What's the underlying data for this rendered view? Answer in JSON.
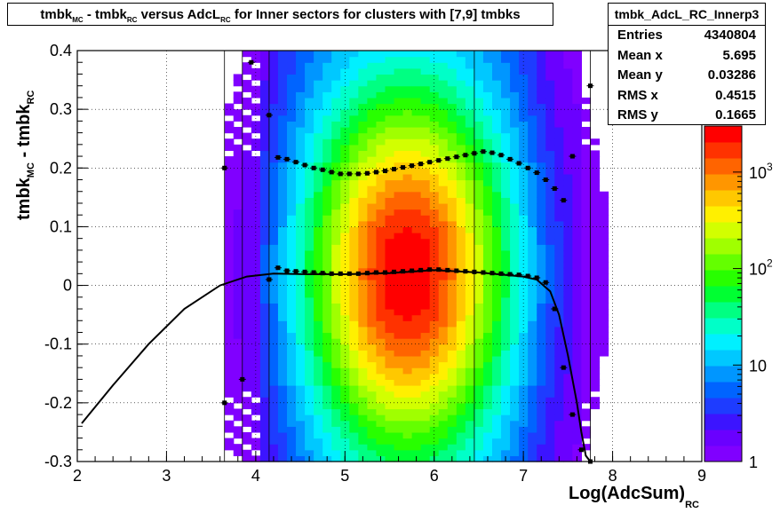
{
  "title": {
    "parts": [
      "tmbk",
      "MC",
      " - tmbk",
      "RC",
      " versus AdcL",
      "RC",
      " for Inner sectors for clusters with [7,9] tmbks"
    ]
  },
  "stats": {
    "name": "tmbk_AdcL_RC_Innerp3",
    "rows": [
      {
        "label": "Entries",
        "value": "4340804"
      },
      {
        "label": "Mean x",
        "value": "5.695"
      },
      {
        "label": "Mean y",
        "value": "0.03286"
      },
      {
        "label": "RMS x",
        "value": "0.4515"
      },
      {
        "label": "RMS y",
        "value": "0.1665"
      }
    ]
  },
  "xlabel": {
    "main": "Log(AdcSum)",
    "sub": "RC"
  },
  "ylabel": {
    "main": "tmbk",
    "sub1": "MC",
    "mid": " - tmbk",
    "sub2": "RC"
  },
  "chart_data": {
    "type": "heatmap",
    "title": "tmbk_MC - tmbk_RC versus AdcL_RC for Inner sectors for clusters with [7,9] tmbks",
    "xlabel": "Log(AdcSum)_RC",
    "ylabel": "tmbk_MC - tmbk_RC",
    "xlim": [
      2,
      9
    ],
    "ylim": [
      -0.3,
      0.4
    ],
    "x_ticks": [
      2,
      3,
      4,
      5,
      6,
      7,
      8,
      9
    ],
    "y_ticks": [
      -0.3,
      -0.2,
      -0.1,
      0,
      0.1,
      0.2,
      0.3,
      0.4
    ],
    "z_scale": "log",
    "z_range": [
      1,
      3000
    ],
    "z_tick_labels": [
      "1",
      "10",
      "10^2",
      "10^3"
    ],
    "grid": true,
    "heatmap_extent": {
      "x": [
        3.65,
        7.85
      ],
      "peak_x": 5.7,
      "y_center": 0.02
    },
    "mean_profile": {
      "x": [
        3.65,
        3.85,
        4.15,
        4.25,
        4.35,
        4.45,
        4.55,
        4.65,
        4.75,
        4.85,
        4.95,
        5.05,
        5.15,
        5.25,
        5.35,
        5.45,
        5.55,
        5.65,
        5.75,
        5.85,
        5.95,
        6.05,
        6.15,
        6.25,
        6.35,
        6.45,
        6.55,
        6.65,
        6.75,
        6.85,
        6.95,
        7.05,
        7.15,
        7.25,
        7.35,
        7.45,
        7.55,
        7.65,
        7.75
      ],
      "y": [
        -0.2,
        -0.16,
        0.01,
        0.03,
        0.025,
        0.024,
        0.023,
        0.022,
        0.021,
        0.02,
        0.02,
        0.02,
        0.02,
        0.021,
        0.022,
        0.022,
        0.023,
        0.024,
        0.025,
        0.026,
        0.027,
        0.027,
        0.026,
        0.025,
        0.024,
        0.023,
        0.022,
        0.021,
        0.02,
        0.019,
        0.018,
        0.016,
        0.013,
        0.005,
        -0.04,
        -0.14,
        -0.22,
        -0.28,
        -0.3
      ]
    },
    "rms_profile": {
      "x": [
        3.65,
        3.95,
        4.15,
        4.25,
        4.35,
        4.45,
        4.55,
        4.65,
        4.75,
        4.85,
        4.95,
        5.05,
        5.15,
        5.25,
        5.35,
        5.45,
        5.55,
        5.65,
        5.75,
        5.85,
        5.95,
        6.05,
        6.15,
        6.25,
        6.35,
        6.45,
        6.55,
        6.65,
        6.75,
        6.85,
        6.95,
        7.05,
        7.15,
        7.25,
        7.35,
        7.45,
        7.55,
        7.75
      ],
      "y": [
        0.2,
        0.38,
        0.29,
        0.218,
        0.215,
        0.21,
        0.205,
        0.2,
        0.197,
        0.193,
        0.19,
        0.19,
        0.19,
        0.191,
        0.193,
        0.195,
        0.198,
        0.201,
        0.204,
        0.207,
        0.21,
        0.213,
        0.216,
        0.219,
        0.222,
        0.225,
        0.228,
        0.226,
        0.222,
        0.215,
        0.208,
        0.2,
        0.192,
        0.18,
        0.165,
        0.145,
        0.22,
        0.34
      ]
    },
    "fit_curve": {
      "x": [
        2.05,
        2.4,
        2.8,
        3.2,
        3.6,
        3.9,
        4.2,
        4.6,
        5.0,
        5.5,
        6.0,
        6.5,
        7.0,
        7.15,
        7.3,
        7.4,
        7.5,
        7.6,
        7.65,
        7.7,
        7.75
      ],
      "y": [
        -0.235,
        -0.17,
        -0.1,
        -0.04,
        0.0,
        0.015,
        0.02,
        0.019,
        0.019,
        0.021,
        0.026,
        0.022,
        0.015,
        0.01,
        -0.01,
        -0.05,
        -0.12,
        -0.2,
        -0.25,
        -0.29,
        -0.3
      ]
    }
  }
}
